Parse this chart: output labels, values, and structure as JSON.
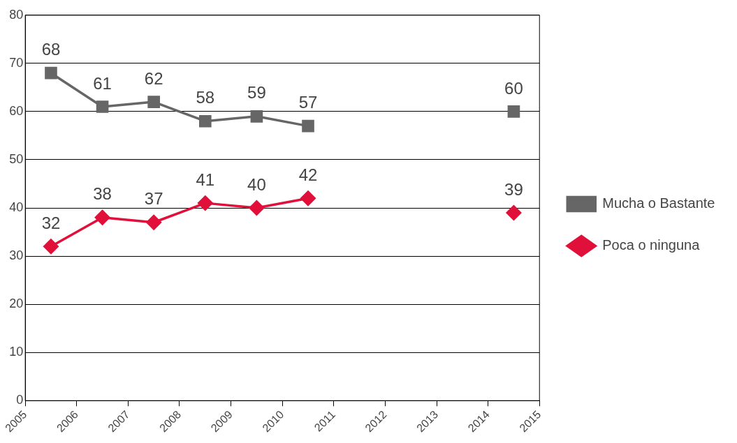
{
  "chart_data": {
    "type": "line",
    "x": [
      2005.5,
      2006.5,
      2007.5,
      2008.5,
      2009.5,
      2010.5,
      2011.5,
      2012.5,
      2013.5,
      2014.5
    ],
    "series": [
      {
        "name": "Mucha o Bastante",
        "color": "#666666",
        "marker": "square",
        "values": [
          68,
          61,
          62,
          58,
          59,
          57,
          null,
          null,
          null,
          60
        ]
      },
      {
        "name": "Poca o ninguna",
        "color": "#e0103a",
        "marker": "diamond",
        "values": [
          32,
          38,
          37,
          41,
          40,
          42,
          null,
          null,
          null,
          39
        ]
      }
    ],
    "xlim": [
      2005,
      2015
    ],
    "xticks": [
      2005,
      2006,
      2007,
      2008,
      2009,
      2010,
      2011,
      2012,
      2013,
      2014,
      2015
    ],
    "ylim": [
      0,
      80
    ],
    "yticks": [
      0,
      10,
      20,
      30,
      40,
      50,
      60,
      70,
      80
    ],
    "grid": "y",
    "legend": "right",
    "data_labels": true
  }
}
